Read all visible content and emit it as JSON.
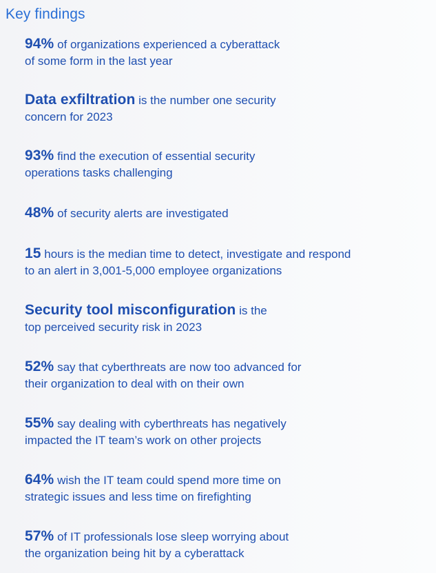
{
  "heading": "Key findings",
  "findings": [
    {
      "stat": "94%",
      "rest": " of organizations experienced a cyberattack",
      "line2": "of some form in the last year"
    },
    {
      "stat": "Data exfiltration",
      "rest": " is the number one security",
      "line2": "concern for 2023"
    },
    {
      "stat": "93%",
      "rest": " find the execution of essential security",
      "line2": "operations tasks challenging"
    },
    {
      "stat": "48%",
      "rest": " of security alerts are investigated",
      "line2": ""
    },
    {
      "stat": "15",
      "rest": " hours is the median time to detect, investigate and respond",
      "line2": "to an alert in 3,001-5,000 employee organizations"
    },
    {
      "stat": "Security tool misconfiguration",
      "rest": " is the",
      "line2": "top perceived security risk in 2023"
    },
    {
      "stat": "52%",
      "rest": " say that cyberthreats are now too advanced for",
      "line2": "their organization to deal with on their own"
    },
    {
      "stat": "55%",
      "rest": " say dealing with cyberthreats has negatively",
      "line2": "impacted the IT team’s work on other projects"
    },
    {
      "stat": "64%",
      "rest": " wish the IT team could spend more time on",
      "line2": "strategic issues and less time on firefighting"
    },
    {
      "stat": "57%",
      "rest": " of IT professionals lose sleep worrying about",
      "line2": "the organization being hit by a cyberattack"
    }
  ]
}
